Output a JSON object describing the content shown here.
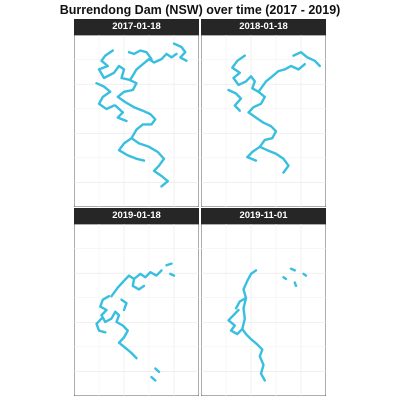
{
  "title": "Burrendong Dam (NSW) over time (2017 - 2019)",
  "chart_data": {
    "type": "facet-map",
    "title": "Burrendong Dam (NSW) over time (2017 - 2019)",
    "xlabel": "",
    "ylabel": "",
    "grid": true,
    "color": "#38BFE0",
    "panels": [
      {
        "label": "2017-01-18",
        "paths": [
          [
            [
              0.31,
              0.09
            ],
            [
              0.25,
              0.12
            ],
            [
              0.22,
              0.15
            ],
            [
              0.27,
              0.18
            ],
            [
              0.2,
              0.2
            ],
            [
              0.24,
              0.25
            ],
            [
              0.32,
              0.22
            ],
            [
              0.36,
              0.18
            ],
            [
              0.4,
              0.2
            ],
            [
              0.38,
              0.25
            ],
            [
              0.44,
              0.26
            ],
            [
              0.5,
              0.28
            ],
            [
              0.47,
              0.32
            ],
            [
              0.4,
              0.33
            ],
            [
              0.35,
              0.36
            ],
            [
              0.41,
              0.39
            ],
            [
              0.48,
              0.42
            ],
            [
              0.55,
              0.44
            ],
            [
              0.61,
              0.46
            ],
            [
              0.65,
              0.49
            ],
            [
              0.62,
              0.52
            ],
            [
              0.55,
              0.52
            ],
            [
              0.5,
              0.55
            ],
            [
              0.46,
              0.6
            ],
            [
              0.52,
              0.63
            ],
            [
              0.6,
              0.65
            ],
            [
              0.67,
              0.68
            ],
            [
              0.72,
              0.72
            ],
            [
              0.68,
              0.76
            ],
            [
              0.64,
              0.79
            ],
            [
              0.7,
              0.82
            ],
            [
              0.75,
              0.85
            ],
            [
              0.7,
              0.88
            ]
          ],
          [
            [
              0.46,
              0.6
            ],
            [
              0.4,
              0.63
            ],
            [
              0.36,
              0.67
            ],
            [
              0.43,
              0.7
            ],
            [
              0.5,
              0.72
            ],
            [
              0.56,
              0.73
            ]
          ],
          [
            [
              0.45,
              0.26
            ],
            [
              0.5,
              0.2
            ],
            [
              0.55,
              0.17
            ],
            [
              0.6,
              0.14
            ],
            [
              0.64,
              0.16
            ],
            [
              0.7,
              0.14
            ],
            [
              0.74,
              0.11
            ],
            [
              0.78,
              0.13
            ],
            [
              0.82,
              0.11
            ]
          ],
          [
            [
              0.62,
              0.14
            ],
            [
              0.58,
              0.1
            ],
            [
              0.53,
              0.09
            ],
            [
              0.48,
              0.11
            ],
            [
              0.44,
              0.1
            ]
          ],
          [
            [
              0.8,
              0.05
            ],
            [
              0.86,
              0.07
            ],
            [
              0.89,
              0.1
            ],
            [
              0.85,
              0.13
            ],
            [
              0.9,
              0.15
            ]
          ],
          [
            [
              0.18,
              0.28
            ],
            [
              0.24,
              0.3
            ],
            [
              0.29,
              0.33
            ],
            [
              0.23,
              0.36
            ],
            [
              0.2,
              0.4
            ],
            [
              0.26,
              0.43
            ],
            [
              0.32,
              0.41
            ]
          ],
          [
            [
              0.33,
              0.41
            ],
            [
              0.39,
              0.45
            ],
            [
              0.35,
              0.48
            ],
            [
              0.42,
              0.5
            ]
          ]
        ]
      },
      {
        "label": "2018-01-18",
        "paths": [
          [
            [
              0.35,
              0.12
            ],
            [
              0.29,
              0.15
            ],
            [
              0.25,
              0.19
            ],
            [
              0.31,
              0.22
            ],
            [
              0.26,
              0.25
            ],
            [
              0.3,
              0.29
            ],
            [
              0.36,
              0.27
            ],
            [
              0.4,
              0.24
            ],
            [
              0.43,
              0.27
            ],
            [
              0.41,
              0.31
            ],
            [
              0.46,
              0.33
            ],
            [
              0.51,
              0.36
            ],
            [
              0.48,
              0.4
            ],
            [
              0.42,
              0.42
            ],
            [
              0.38,
              0.45
            ],
            [
              0.44,
              0.48
            ],
            [
              0.5,
              0.51
            ],
            [
              0.56,
              0.53
            ],
            [
              0.6,
              0.56
            ],
            [
              0.57,
              0.6
            ],
            [
              0.51,
              0.61
            ],
            [
              0.47,
              0.65
            ],
            [
              0.53,
              0.67
            ],
            [
              0.6,
              0.69
            ],
            [
              0.66,
              0.72
            ],
            [
              0.7,
              0.76
            ],
            [
              0.66,
              0.8
            ]
          ],
          [
            [
              0.47,
              0.65
            ],
            [
              0.41,
              0.68
            ],
            [
              0.37,
              0.71
            ],
            [
              0.44,
              0.73
            ]
          ],
          [
            [
              0.46,
              0.33
            ],
            [
              0.52,
              0.27
            ],
            [
              0.57,
              0.24
            ],
            [
              0.62,
              0.21
            ],
            [
              0.67,
              0.2
            ],
            [
              0.72,
              0.18
            ],
            [
              0.78,
              0.2
            ],
            [
              0.83,
              0.17
            ]
          ],
          [
            [
              0.74,
              0.12
            ],
            [
              0.8,
              0.1
            ],
            [
              0.85,
              0.13
            ],
            [
              0.91,
              0.15
            ],
            [
              0.95,
              0.18
            ]
          ],
          [
            [
              0.22,
              0.32
            ],
            [
              0.28,
              0.34
            ],
            [
              0.32,
              0.37
            ],
            [
              0.27,
              0.41
            ],
            [
              0.31,
              0.44
            ]
          ]
        ]
      },
      {
        "label": "2019-01-18",
        "paths": [
          [
            [
              0.28,
              0.42
            ],
            [
              0.23,
              0.44
            ],
            [
              0.21,
              0.48
            ],
            [
              0.26,
              0.5
            ],
            [
              0.22,
              0.53
            ],
            [
              0.25,
              0.57
            ],
            [
              0.3,
              0.55
            ],
            [
              0.33,
              0.51
            ],
            [
              0.36,
              0.53
            ],
            [
              0.34,
              0.57
            ],
            [
              0.39,
              0.59
            ],
            [
              0.43,
              0.62
            ],
            [
              0.4,
              0.66
            ],
            [
              0.36,
              0.69
            ],
            [
              0.41,
              0.72
            ],
            [
              0.46,
              0.75
            ],
            [
              0.5,
              0.78
            ]
          ],
          [
            [
              0.3,
              0.42
            ],
            [
              0.35,
              0.37
            ],
            [
              0.4,
              0.33
            ],
            [
              0.44,
              0.3
            ],
            [
              0.48,
              0.32
            ],
            [
              0.53,
              0.29
            ],
            [
              0.57,
              0.31
            ],
            [
              0.61,
              0.28
            ],
            [
              0.66,
              0.3
            ],
            [
              0.7,
              0.27
            ]
          ],
          [
            [
              0.48,
              0.32
            ],
            [
              0.47,
              0.36
            ],
            [
              0.52,
              0.38
            ],
            [
              0.56,
              0.36
            ]
          ],
          [
            [
              0.22,
              0.55
            ],
            [
              0.18,
              0.58
            ],
            [
              0.2,
              0.62
            ],
            [
              0.25,
              0.63
            ]
          ],
          [
            [
              0.38,
              0.44
            ],
            [
              0.42,
              0.46
            ],
            [
              0.4,
              0.5
            ]
          ],
          [
            [
              0.74,
              0.24
            ],
            [
              0.78,
              0.23
            ]
          ],
          [
            [
              0.65,
              0.84
            ],
            [
              0.68,
              0.86
            ]
          ],
          [
            [
              0.62,
              0.89
            ],
            [
              0.65,
              0.91
            ]
          ],
          [
            [
              0.77,
              0.29
            ],
            [
              0.8,
              0.3
            ]
          ]
        ]
      },
      {
        "label": "2019-11-01",
        "paths": [
          [
            [
              0.3,
              0.5
            ],
            [
              0.26,
              0.53
            ],
            [
              0.22,
              0.56
            ],
            [
              0.27,
              0.59
            ],
            [
              0.24,
              0.62
            ],
            [
              0.29,
              0.64
            ],
            [
              0.33,
              0.61
            ],
            [
              0.36,
              0.64
            ],
            [
              0.4,
              0.67
            ],
            [
              0.45,
              0.7
            ],
            [
              0.49,
              0.73
            ],
            [
              0.47,
              0.77
            ],
            [
              0.5,
              0.82
            ],
            [
              0.48,
              0.87
            ],
            [
              0.51,
              0.91
            ]
          ],
          [
            [
              0.33,
              0.61
            ],
            [
              0.35,
              0.55
            ],
            [
              0.34,
              0.49
            ],
            [
              0.36,
              0.43
            ],
            [
              0.34,
              0.38
            ],
            [
              0.37,
              0.33
            ],
            [
              0.4,
              0.29
            ],
            [
              0.44,
              0.27
            ]
          ],
          [
            [
              0.36,
              0.43
            ],
            [
              0.31,
              0.45
            ],
            [
              0.28,
              0.49
            ]
          ],
          [
            [
              0.72,
              0.26
            ],
            [
              0.75,
              0.27
            ]
          ],
          [
            [
              0.82,
              0.29
            ],
            [
              0.84,
              0.3
            ]
          ],
          [
            [
              0.75,
              0.34
            ],
            [
              0.76,
              0.36
            ]
          ],
          [
            [
              0.66,
              0.31
            ],
            [
              0.68,
              0.32
            ]
          ]
        ]
      }
    ]
  }
}
